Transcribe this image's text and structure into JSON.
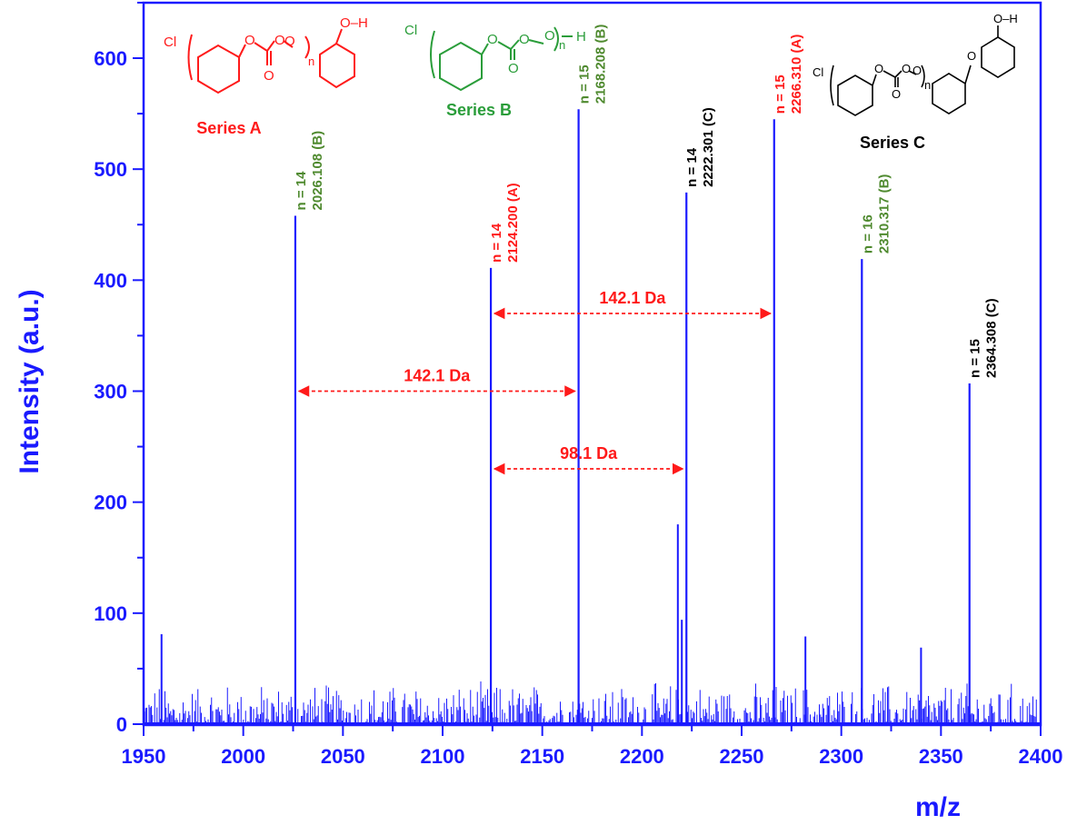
{
  "chart_data": {
    "type": "line",
    "title": "",
    "xlabel": "m/z",
    "ylabel": "Intensity (a.u.)",
    "xlim": [
      1950,
      2400
    ],
    "ylim": [
      0,
      650
    ],
    "x_ticks": [
      "1950",
      "2000",
      "2050",
      "2100",
      "2150",
      "2200",
      "2250",
      "2300",
      "2350",
      "2400"
    ],
    "y_ticks": [
      "0",
      "100",
      "200",
      "300",
      "400",
      "500",
      "600"
    ],
    "line_color": "#1a1aff",
    "baseline_noise_max": 40,
    "peaks": [
      {
        "x": 2026.108,
        "y": 458,
        "n": "n = 14",
        "mass": "2026.108 (B)",
        "series": "B",
        "color": "#4f8a2f"
      },
      {
        "x": 2124.2,
        "y": 411,
        "n": "n = 14",
        "mass": "2124.200 (A)",
        "series": "A",
        "color": "#ff1a1a"
      },
      {
        "x": 2168.208,
        "y": 554,
        "n": "n = 15",
        "mass": "2168.208 (B)",
        "series": "B",
        "color": "#4f8a2f"
      },
      {
        "x": 2222.301,
        "y": 479,
        "n": "n = 14",
        "mass": "2222.301 (C)",
        "series": "C",
        "color": "#000000"
      },
      {
        "x": 2266.31,
        "y": 545,
        "n": "n = 15",
        "mass": "2266.310 (A)",
        "series": "A",
        "color": "#ff1a1a"
      },
      {
        "x": 2310.317,
        "y": 419,
        "n": "n = 16",
        "mass": "2310.317 (B)",
        "series": "B",
        "color": "#4f8a2f"
      },
      {
        "x": 2364.308,
        "y": 307,
        "n": "n = 15",
        "mass": "2364.308 (C)",
        "series": "C",
        "color": "#000000"
      }
    ],
    "minor_peaks": [
      {
        "x": 1959,
        "y": 81
      },
      {
        "x": 2218,
        "y": 180
      },
      {
        "x": 2220,
        "y": 94
      },
      {
        "x": 2282,
        "y": 79
      },
      {
        "x": 2340,
        "y": 69
      }
    ],
    "annotations": [
      {
        "label": "142.1 Da",
        "from": 2124.2,
        "to": 2266.3,
        "y": 370
      },
      {
        "label": "142.1 Da",
        "from": 2026.1,
        "to": 2168.2,
        "y": 300
      },
      {
        "label": "98.1 Da",
        "from": 2124.2,
        "to": 2222.3,
        "y": 230
      }
    ],
    "structures": [
      {
        "name": "Series A",
        "color": "#ff1a1a",
        "atoms": {
          "cl": "Cl",
          "o": "O",
          "oh": "O–H",
          "n": "n",
          "h": ""
        }
      },
      {
        "name": "Series B",
        "color": "#2a9d3a",
        "atoms": {
          "cl": "Cl",
          "o": "O",
          "oh": "",
          "n": "n",
          "h": "H"
        }
      },
      {
        "name": "Series C",
        "color": "#000000",
        "atoms": {
          "cl": "Cl",
          "o": "O",
          "oh": "O–H",
          "n": "n",
          "h": ""
        }
      }
    ]
  }
}
